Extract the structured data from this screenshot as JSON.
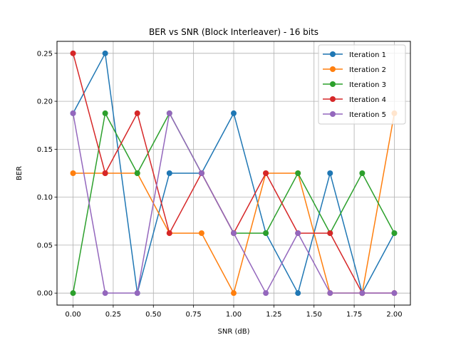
{
  "chart_data": {
    "type": "line",
    "title": "BER vs SNR (Block Interleaver) - 16 bits",
    "xlabel": "SNR (dB)",
    "ylabel": "BER",
    "xlim": [
      -0.1,
      2.1
    ],
    "ylim": [
      -0.0125,
      0.2625
    ],
    "xticks": [
      0.0,
      0.25,
      0.5,
      0.75,
      1.0,
      1.25,
      1.5,
      1.75,
      2.0
    ],
    "xtick_labels": [
      "0.00",
      "0.25",
      "0.50",
      "0.75",
      "1.00",
      "1.25",
      "1.50",
      "1.75",
      "2.00"
    ],
    "yticks": [
      0.0,
      0.05,
      0.1,
      0.15,
      0.2,
      0.25
    ],
    "ytick_labels": [
      "0.00",
      "0.05",
      "0.10",
      "0.15",
      "0.20",
      "0.25"
    ],
    "grid": true,
    "legend_position": "top-right",
    "x": [
      0.0,
      0.2,
      0.4,
      0.6,
      0.8,
      1.0,
      1.2,
      1.4,
      1.6,
      1.8,
      2.0
    ],
    "series": [
      {
        "name": "Iteration 1",
        "color": "#1f77b4",
        "values": [
          0.1875,
          0.25,
          0.0,
          0.125,
          0.125,
          0.1875,
          0.0625,
          0.0,
          0.125,
          0.0,
          0.0625
        ]
      },
      {
        "name": "Iteration 2",
        "color": "#ff7f0e",
        "values": [
          0.125,
          0.125,
          0.125,
          0.0625,
          0.0625,
          0.0,
          0.125,
          0.125,
          0.0,
          0.0,
          0.1875
        ]
      },
      {
        "name": "Iteration 3",
        "color": "#2ca02c",
        "values": [
          0.0,
          0.1875,
          0.125,
          0.1875,
          0.125,
          0.0625,
          0.0625,
          0.125,
          0.0625,
          0.125,
          0.0625
        ]
      },
      {
        "name": "Iteration 4",
        "color": "#d62728",
        "values": [
          0.25,
          0.125,
          0.1875,
          0.0625,
          0.125,
          0.0625,
          0.125,
          0.0625,
          0.0625,
          0.0,
          0.0
        ]
      },
      {
        "name": "Iteration 5",
        "color": "#9467bd",
        "values": [
          0.1875,
          0.0,
          0.0,
          0.1875,
          0.125,
          0.0625,
          0.0,
          0.0625,
          0.0,
          0.0,
          0.0
        ]
      }
    ]
  }
}
